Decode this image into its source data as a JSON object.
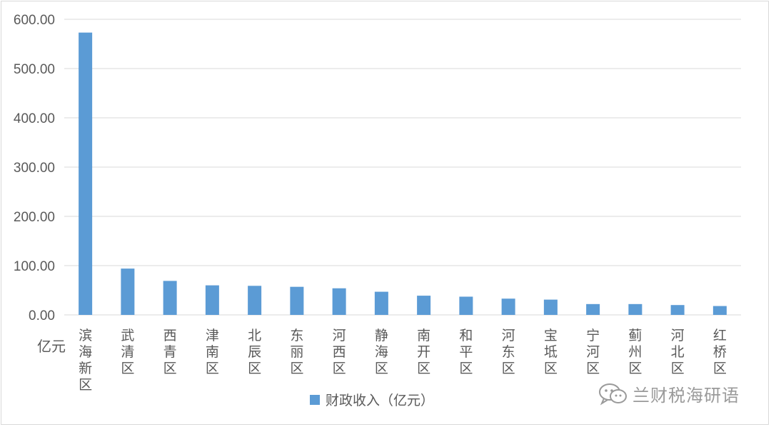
{
  "chart_data": {
    "type": "bar",
    "categories": [
      "滨海新区",
      "武清区",
      "西青区",
      "津南区",
      "北辰区",
      "东丽区",
      "河西区",
      "静海区",
      "南开区",
      "和平区",
      "河东区",
      "宝坻区",
      "宁河区",
      "蓟州区",
      "河北区",
      "红桥区"
    ],
    "series": [
      {
        "name": "财政收入（亿元）",
        "values": [
          573.0,
          94.0,
          69.0,
          60.0,
          59.0,
          57.0,
          54.0,
          47.0,
          39.0,
          37.0,
          33.0,
          31.0,
          22.0,
          22.0,
          20.0,
          18.0
        ]
      }
    ],
    "y_ticks": [
      "0.00",
      "100.00",
      "200.00",
      "300.00",
      "400.00",
      "500.00",
      "600.00"
    ],
    "ylim": [
      0,
      600
    ],
    "ylabel": "亿元",
    "grid": true,
    "legend": "bottom",
    "bar_color": "#5b9bd5"
  },
  "watermark": {
    "text": "兰财税海研语",
    "icon": "wechat-icon"
  },
  "colors": {
    "grid": "#d9d9d9",
    "text": "#595959",
    "bar": "#5b9bd5"
  }
}
